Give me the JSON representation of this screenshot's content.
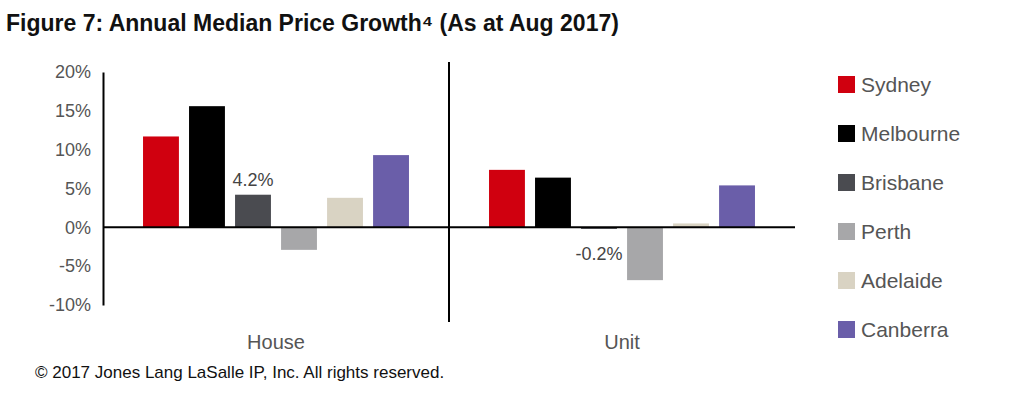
{
  "chart_data": {
    "type": "bar",
    "title": "Figure 7: Annual Median Price Growth⁴ (As at Aug 2017)",
    "footnote": "© 2017 Jones Lang LaSalle IP, Inc. All rights reserved.",
    "categories": [
      "House",
      "Unit"
    ],
    "series": [
      {
        "name": "Sydney",
        "color": "#d0000f",
        "values": [
          11.7,
          7.4
        ]
      },
      {
        "name": "Melbourne",
        "color": "#000000",
        "values": [
          15.6,
          6.4
        ]
      },
      {
        "name": "Brisbane",
        "color": "#4a4b50",
        "values": [
          4.2,
          -0.2
        ],
        "data_labels": true,
        "value_labels": [
          "4.2%",
          "-0.2%"
        ]
      },
      {
        "name": "Perth",
        "color": "#a7a7a9",
        "values": [
          -2.9,
          -6.8
        ]
      },
      {
        "name": "Adelaide",
        "color": "#d9d3c3",
        "values": [
          3.8,
          0.5
        ]
      },
      {
        "name": "Canberra",
        "color": "#6a5ea9",
        "values": [
          9.3,
          5.4
        ]
      }
    ],
    "ylim": [
      -10,
      20
    ],
    "yticks": [
      {
        "value": -10,
        "label": "-10%"
      },
      {
        "value": -5,
        "label": "-5%"
      },
      {
        "value": 0,
        "label": "0%"
      },
      {
        "value": 5,
        "label": "5%"
      },
      {
        "value": 10,
        "label": "10%"
      },
      {
        "value": 15,
        "label": "15%"
      },
      {
        "value": 20,
        "label": "20%"
      }
    ],
    "grid": false,
    "legend": "right"
  }
}
